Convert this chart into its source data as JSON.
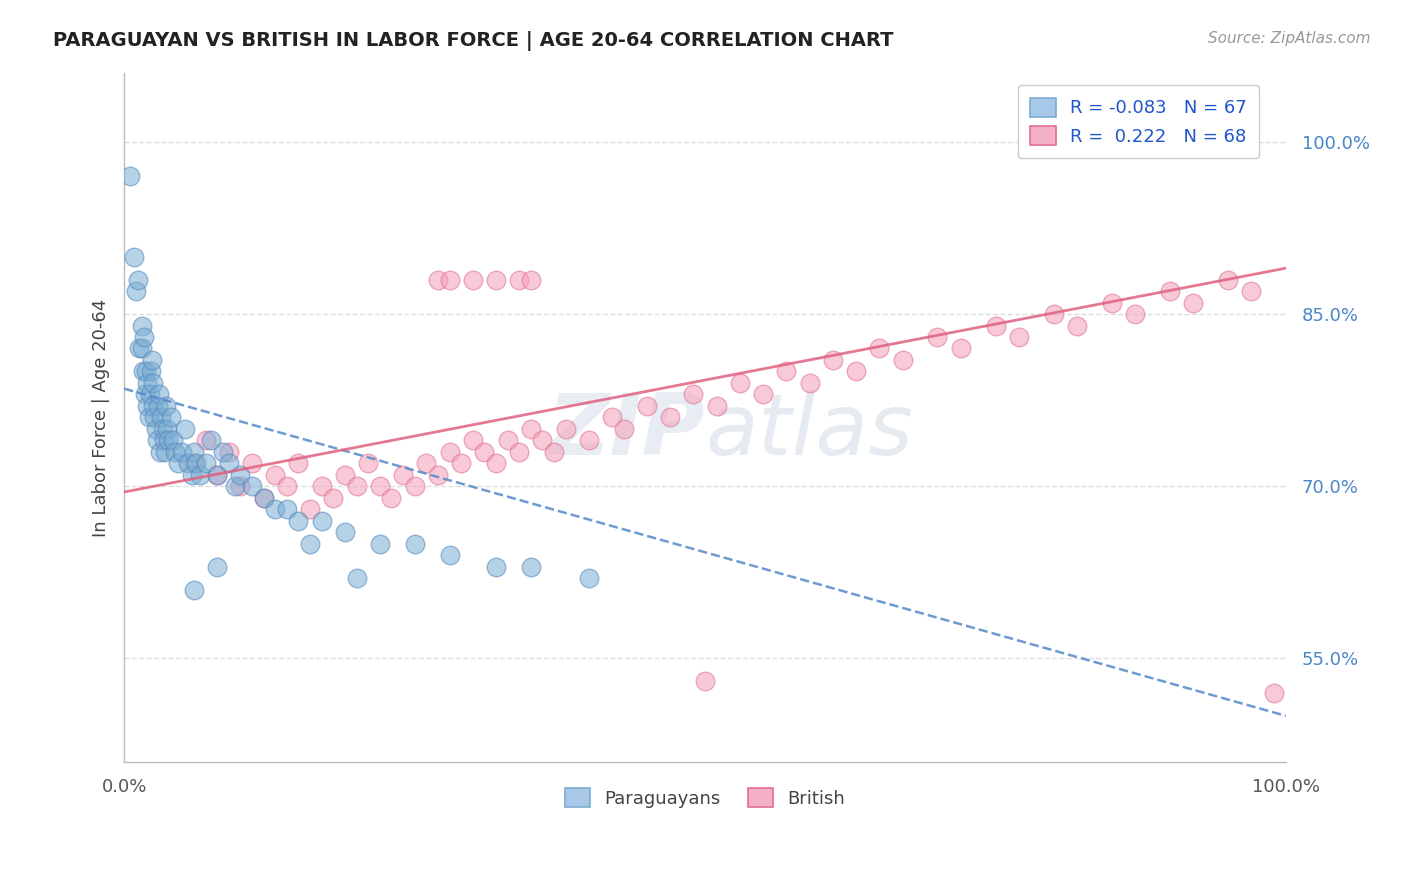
{
  "title": "PARAGUAYAN VS BRITISH IN LABOR FORCE | AGE 20-64 CORRELATION CHART",
  "source_text": "Source: ZipAtlas.com",
  "ylabel": "In Labor Force | Age 20-64",
  "xlim": [
    0.0,
    1.0
  ],
  "ylim": [
    0.46,
    1.06
  ],
  "y_ticks": [
    0.55,
    0.7,
    0.85,
    1.0
  ],
  "y_tick_labels": [
    "55.0%",
    "70.0%",
    "85.0%",
    "100.0%"
  ],
  "legend_bottom": [
    "Paraguayans",
    "British"
  ],
  "paraguayan_R": -0.083,
  "british_R": 0.222,
  "watermark_text": "ZIPatlas",
  "background_color": "#ffffff",
  "grid_color": "#dddddd",
  "paraguayan_color": "#7aadd4",
  "paraguayan_edge": "#5588bb",
  "british_color": "#f4a0b8",
  "british_edge": "#e07090",
  "par_trend_color": "#5588cc",
  "brit_trend_color": "#e06080",
  "scatter_alpha": 0.55,
  "scatter_size": 180,
  "par_trend_intercept": 0.785,
  "par_trend_slope": -0.285,
  "brit_trend_intercept": 0.695,
  "brit_trend_slope": 0.195,
  "paraguayan_x": [
    0.005,
    0.008,
    0.01,
    0.012,
    0.013,
    0.015,
    0.015,
    0.016,
    0.017,
    0.018,
    0.019,
    0.02,
    0.02,
    0.021,
    0.022,
    0.023,
    0.024,
    0.025,
    0.025,
    0.026,
    0.027,
    0.028,
    0.029,
    0.03,
    0.031,
    0.032,
    0.033,
    0.034,
    0.035,
    0.036,
    0.037,
    0.038,
    0.04,
    0.042,
    0.044,
    0.046,
    0.05,
    0.052,
    0.055,
    0.058,
    0.06,
    0.062,
    0.065,
    0.07,
    0.075,
    0.08,
    0.085,
    0.09,
    0.095,
    0.1,
    0.11,
    0.12,
    0.13,
    0.14,
    0.15,
    0.17,
    0.19,
    0.22,
    0.25,
    0.28,
    0.32,
    0.35,
    0.4,
    0.2,
    0.16,
    0.08,
    0.06
  ],
  "paraguayan_y": [
    0.97,
    0.9,
    0.87,
    0.88,
    0.82,
    0.82,
    0.84,
    0.8,
    0.83,
    0.78,
    0.8,
    0.79,
    0.77,
    0.76,
    0.78,
    0.8,
    0.81,
    0.79,
    0.77,
    0.76,
    0.75,
    0.74,
    0.77,
    0.78,
    0.73,
    0.76,
    0.75,
    0.74,
    0.73,
    0.77,
    0.75,
    0.74,
    0.76,
    0.74,
    0.73,
    0.72,
    0.73,
    0.75,
    0.72,
    0.71,
    0.73,
    0.72,
    0.71,
    0.72,
    0.74,
    0.71,
    0.73,
    0.72,
    0.7,
    0.71,
    0.7,
    0.69,
    0.68,
    0.68,
    0.67,
    0.67,
    0.66,
    0.65,
    0.65,
    0.64,
    0.63,
    0.63,
    0.62,
    0.62,
    0.65,
    0.63,
    0.61
  ],
  "british_x": [
    0.06,
    0.07,
    0.08,
    0.09,
    0.1,
    0.11,
    0.12,
    0.13,
    0.14,
    0.15,
    0.16,
    0.17,
    0.18,
    0.19,
    0.2,
    0.21,
    0.22,
    0.23,
    0.24,
    0.25,
    0.26,
    0.27,
    0.28,
    0.29,
    0.3,
    0.31,
    0.32,
    0.33,
    0.34,
    0.35,
    0.36,
    0.37,
    0.38,
    0.4,
    0.42,
    0.43,
    0.45,
    0.47,
    0.49,
    0.51,
    0.53,
    0.55,
    0.57,
    0.59,
    0.61,
    0.63,
    0.65,
    0.67,
    0.7,
    0.72,
    0.75,
    0.77,
    0.8,
    0.82,
    0.85,
    0.87,
    0.9,
    0.92,
    0.95,
    0.97,
    0.99,
    0.27,
    0.28,
    0.3,
    0.32,
    0.34,
    0.35,
    0.5
  ],
  "british_y": [
    0.72,
    0.74,
    0.71,
    0.73,
    0.7,
    0.72,
    0.69,
    0.71,
    0.7,
    0.72,
    0.68,
    0.7,
    0.69,
    0.71,
    0.7,
    0.72,
    0.7,
    0.69,
    0.71,
    0.7,
    0.72,
    0.71,
    0.73,
    0.72,
    0.74,
    0.73,
    0.72,
    0.74,
    0.73,
    0.75,
    0.74,
    0.73,
    0.75,
    0.74,
    0.76,
    0.75,
    0.77,
    0.76,
    0.78,
    0.77,
    0.79,
    0.78,
    0.8,
    0.79,
    0.81,
    0.8,
    0.82,
    0.81,
    0.83,
    0.82,
    0.84,
    0.83,
    0.85,
    0.84,
    0.86,
    0.85,
    0.87,
    0.86,
    0.88,
    0.87,
    0.52,
    0.88,
    0.88,
    0.88,
    0.88,
    0.88,
    0.88,
    0.53
  ]
}
